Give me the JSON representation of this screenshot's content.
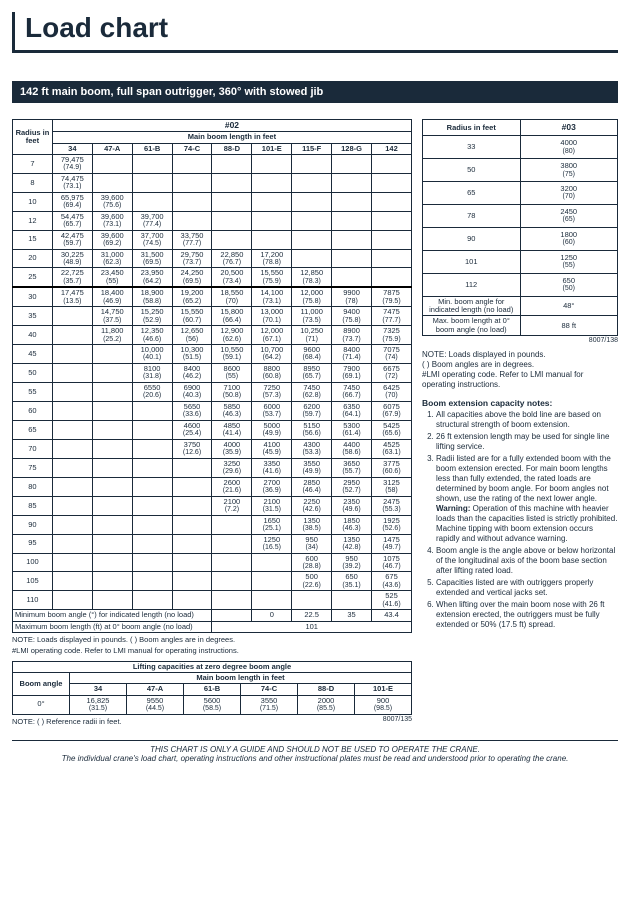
{
  "page_title": "Load chart",
  "subtitle": "142 ft main boom, full span outrigger, 360° with stowed jib",
  "main_table": {
    "code": "#02",
    "span_header": "Main boom length in feet",
    "radius_header": "Radius in feet",
    "boom_cols": [
      "34",
      "47-A",
      "61-B",
      "74-C",
      "88-D",
      "101-E",
      "115-F",
      "128-G",
      "142"
    ],
    "radii": [
      "7",
      "8",
      "10",
      "12",
      "15",
      "20",
      "25",
      "30",
      "35",
      "40",
      "45",
      "50",
      "55",
      "60",
      "65",
      "70",
      "75",
      "80",
      "85",
      "90",
      "95",
      "100",
      "105",
      "110"
    ],
    "rows": [
      [
        [
          "79,475",
          "(74.9)"
        ],
        null,
        null,
        null,
        null,
        null,
        null,
        null,
        null
      ],
      [
        [
          "74,475",
          "(73.1)"
        ],
        null,
        null,
        null,
        null,
        null,
        null,
        null,
        null
      ],
      [
        [
          "65,975",
          "(69.4)"
        ],
        [
          "39,600",
          "(75.6)"
        ],
        null,
        null,
        null,
        null,
        null,
        null,
        null
      ],
      [
        [
          "54,475",
          "(65.7)"
        ],
        [
          "39,600",
          "(73.1)"
        ],
        [
          "39,700",
          "(77.4)"
        ],
        null,
        null,
        null,
        null,
        null,
        null
      ],
      [
        [
          "42,475",
          "(59.7)"
        ],
        [
          "39,600",
          "(69.2)"
        ],
        [
          "37,700",
          "(74.5)"
        ],
        [
          "33,750",
          "(77.7)"
        ],
        null,
        null,
        null,
        null,
        null
      ],
      [
        [
          "30,225",
          "(48.9)"
        ],
        [
          "31,000",
          "(62.3)"
        ],
        [
          "31,500",
          "(69.5)"
        ],
        [
          "29,750",
          "(73.7)"
        ],
        [
          "22,850",
          "(76.7)"
        ],
        [
          "17,200",
          "(78.8)"
        ],
        null,
        null,
        null
      ],
      [
        [
          "22,725",
          "(35.7)"
        ],
        [
          "23,450",
          "(55)"
        ],
        [
          "23,950",
          "(64.2)"
        ],
        [
          "24,250",
          "(69.5)"
        ],
        [
          "20,500",
          "(73.4)"
        ],
        [
          "15,550",
          "(75.9)"
        ],
        [
          "12,850",
          "(78.3)"
        ],
        null,
        null
      ],
      [
        [
          "17,475",
          "(13.5)"
        ],
        [
          "18,400",
          "(46.9)"
        ],
        [
          "18,900",
          "(58.8)"
        ],
        [
          "19,200",
          "(65.2)"
        ],
        [
          "18,550",
          "(70)"
        ],
        [
          "14,100",
          "(73.1)"
        ],
        [
          "12,000",
          "(75.8)"
        ],
        [
          "9900",
          "(78)"
        ],
        [
          "7875",
          "(79.5)"
        ]
      ],
      [
        null,
        [
          "14,750",
          "(37.5)"
        ],
        [
          "15,250",
          "(52.9)"
        ],
        [
          "15,550",
          "(60.7)"
        ],
        [
          "15,800",
          "(66.4)"
        ],
        [
          "13,000",
          "(70.1)"
        ],
        [
          "11,000",
          "(73.5)"
        ],
        [
          "9400",
          "(75.8)"
        ],
        [
          "7475",
          "(77.7)"
        ]
      ],
      [
        null,
        [
          "11,800",
          "(25.2)"
        ],
        [
          "12,350",
          "(46.6)"
        ],
        [
          "12,650",
          "(56)"
        ],
        [
          "12,900",
          "(62.6)"
        ],
        [
          "12,000",
          "(67.1)"
        ],
        [
          "10,250",
          "(71)"
        ],
        [
          "8900",
          "(73.7)"
        ],
        [
          "7325",
          "(75.9)"
        ]
      ],
      [
        null,
        null,
        [
          "10,000",
          "(40.1)"
        ],
        [
          "10,300",
          "(51.5)"
        ],
        [
          "10,550",
          "(59.1)"
        ],
        [
          "10,700",
          "(64.2)"
        ],
        [
          "9600",
          "(68.4)"
        ],
        [
          "8400",
          "(71.4)"
        ],
        [
          "7075",
          "(74)"
        ]
      ],
      [
        null,
        null,
        [
          "8100",
          "(31.8)"
        ],
        [
          "8400",
          "(46.2)"
        ],
        [
          "8600",
          "(55)"
        ],
        [
          "8800",
          "(60.8)"
        ],
        [
          "8950",
          "(65.7)"
        ],
        [
          "7900",
          "(69.1)"
        ],
        [
          "6675",
          "(72)"
        ]
      ],
      [
        null,
        null,
        [
          "6550",
          "(20.6)"
        ],
        [
          "6900",
          "(40.3)"
        ],
        [
          "7100",
          "(50.8)"
        ],
        [
          "7250",
          "(57.3)"
        ],
        [
          "7450",
          "(62.8)"
        ],
        [
          "7450",
          "(66.7)"
        ],
        [
          "6425",
          "(70)"
        ]
      ],
      [
        null,
        null,
        null,
        [
          "5650",
          "(33.6)"
        ],
        [
          "5850",
          "(46.3)"
        ],
        [
          "6000",
          "(53.7)"
        ],
        [
          "6200",
          "(59.7)"
        ],
        [
          "6350",
          "(64.1)"
        ],
        [
          "6075",
          "(67.9)"
        ]
      ],
      [
        null,
        null,
        null,
        [
          "4600",
          "(25.4)"
        ],
        [
          "4850",
          "(41.4)"
        ],
        [
          "5000",
          "(49.9)"
        ],
        [
          "5150",
          "(56.6)"
        ],
        [
          "5300",
          "(61.4)"
        ],
        [
          "5425",
          "(65.6)"
        ]
      ],
      [
        null,
        null,
        null,
        [
          "3750",
          "(12.6)"
        ],
        [
          "4000",
          "(35.9)"
        ],
        [
          "4100",
          "(45.9)"
        ],
        [
          "4300",
          "(53.3)"
        ],
        [
          "4400",
          "(58.6)"
        ],
        [
          "4525",
          "(63.1)"
        ]
      ],
      [
        null,
        null,
        null,
        null,
        [
          "3250",
          "(29.6)"
        ],
        [
          "3350",
          "(41.6)"
        ],
        [
          "3550",
          "(49.9)"
        ],
        [
          "3650",
          "(55.7)"
        ],
        [
          "3775",
          "(60.6)"
        ]
      ],
      [
        null,
        null,
        null,
        null,
        [
          "2600",
          "(21.6)"
        ],
        [
          "2700",
          "(36.9)"
        ],
        [
          "2850",
          "(46.4)"
        ],
        [
          "2950",
          "(52.7)"
        ],
        [
          "3125",
          "(58)"
        ]
      ],
      [
        null,
        null,
        null,
        null,
        [
          "2100",
          "(7.2)"
        ],
        [
          "2100",
          "(31.5)"
        ],
        [
          "2250",
          "(42.6)"
        ],
        [
          "2350",
          "(49.6)"
        ],
        [
          "2475",
          "(55.3)"
        ]
      ],
      [
        null,
        null,
        null,
        null,
        null,
        [
          "1650",
          "(25.1)"
        ],
        [
          "1350",
          "(38.5)"
        ],
        [
          "1850",
          "(46.3)"
        ],
        [
          "1925",
          "(52.6)"
        ]
      ],
      [
        null,
        null,
        null,
        null,
        null,
        [
          "1250",
          "(16.5)"
        ],
        [
          "950",
          "(34)"
        ],
        [
          "1350",
          "(42.8)"
        ],
        [
          "1475",
          "(49.7)"
        ]
      ],
      [
        null,
        null,
        null,
        null,
        null,
        null,
        [
          "600",
          "(28.8)"
        ],
        [
          "950",
          "(39.2)"
        ],
        [
          "1075",
          "(46.7)"
        ]
      ],
      [
        null,
        null,
        null,
        null,
        null,
        null,
        [
          "500",
          "(22.6)"
        ],
        [
          "650",
          "(35.1)"
        ],
        [
          "675",
          "(43.6)"
        ]
      ],
      [
        null,
        null,
        null,
        null,
        null,
        null,
        null,
        null,
        [
          "525",
          "(41.6)"
        ]
      ]
    ],
    "bold_underline_row_index": 7,
    "min_angle_label": "Minimum boom angle (°) for indicated length (no load)",
    "min_angle_vals": [
      "",
      "",
      "",
      "",
      "",
      "0",
      "22.5",
      "35",
      "43.4"
    ],
    "max_len_label": "Maximum boom length (ft) at 0° boom angle (no load)",
    "max_len_val": "101",
    "footnote1": "NOTE: Loads displayed in pounds. ( ) Boom angles are in degrees.",
    "footnote2": "#LMI operating code. Refer to LMI manual for operating instructions."
  },
  "zero_table": {
    "header": "Lifting capacities at zero degree boom angle",
    "span_header": "Main boom length in feet",
    "boom_angle_header": "Boom angle",
    "cols": [
      "34",
      "47-A",
      "61-B",
      "74-C",
      "88-D",
      "101-E"
    ],
    "angle": "0°",
    "row": [
      [
        "16,825",
        "(31.5)"
      ],
      [
        "9550",
        "(44.5)"
      ],
      [
        "5600",
        "(58.5)"
      ],
      [
        "3550",
        "(71.5)"
      ],
      [
        "2000",
        "(85.5)"
      ],
      [
        "900",
        "(98.5)"
      ]
    ],
    "footnote": "NOTE: ( ) Reference radii in feet.",
    "code": "8007/135"
  },
  "side_table": {
    "code": "#03",
    "radius_header": "Radius in feet",
    "rows": [
      [
        "33",
        [
          "4000",
          "(80)"
        ]
      ],
      [
        "50",
        [
          "3800",
          "(75)"
        ]
      ],
      [
        "65",
        [
          "3200",
          "(70)"
        ]
      ],
      [
        "78",
        [
          "2450",
          "(65)"
        ]
      ],
      [
        "90",
        [
          "1800",
          "(60)"
        ]
      ],
      [
        "101",
        [
          "1250",
          "(55)"
        ]
      ],
      [
        "112",
        [
          "650",
          "(50)"
        ]
      ]
    ],
    "min_label": "Min. boom angle for indicated length (no load)",
    "min_val": "48°",
    "max_label": "Max. boom length at 0° boom angle (no load)",
    "max_val": "88 ft",
    "code_right": "8007/138"
  },
  "right_notes": {
    "para": "NOTE: Loads displayed in pounds.\n( ) Boom angles are in degrees.\n#LMI operating code. Refer to LMI manual for operating instructions.",
    "title": "Boom extension capacity notes:",
    "items": [
      "All capacities above the bold line are based on structural strength of boom extension.",
      "26 ft extension length may be used for single line lifting service.",
      "Radii listed are for a fully extended boom with the boom extension erected. For main boom lengths less than fully extended, the rated loads are determined by boom angle. For boom angles not shown, use the rating of the next lower angle.\nWarning: Operation of this machine with heavier loads than the capacities listed is strictly prohibited. Machine tipping with boom extension occurs rapidly and without advance warning.",
      "Boom angle is the angle above or below horizontal of the longitudinal axis of the boom base section after lifting rated load.",
      "Capacities listed are with outriggers properly extended and vertical jacks set.",
      "When lifting over the main boom nose with 26 ft extension erected, the outriggers must be fully extended or 50% (17.5 ft) spread."
    ]
  },
  "disclaimer": {
    "line1": "THIS CHART IS ONLY A GUIDE AND SHOULD NOT BE USED TO OPERATE THE CRANE.",
    "line2": "The individual crane's load chart, operating instructions and other instructional plates must be read and understood prior to operating the crane."
  }
}
